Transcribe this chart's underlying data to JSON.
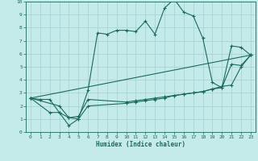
{
  "xlabel": "Humidex (Indice chaleur)",
  "xlim": [
    -0.5,
    23.5
  ],
  "ylim": [
    0,
    10
  ],
  "background_color": "#c5eaea",
  "grid_color": "#a8d5d5",
  "line_color": "#1a6b5a",
  "lines": [
    {
      "x": [
        0,
        1,
        2,
        3,
        4,
        5,
        6,
        7,
        8,
        9,
        10,
        11,
        12,
        13,
        14,
        15,
        16,
        17,
        18,
        19,
        20,
        21,
        22,
        23
      ],
      "y": [
        2.6,
        2.5,
        2.5,
        1.5,
        1.1,
        1.0,
        3.2,
        7.6,
        7.5,
        7.8,
        7.8,
        7.7,
        8.5,
        7.5,
        9.5,
        10.2,
        9.2,
        8.9,
        7.2,
        3.8,
        3.4,
        6.6,
        6.5,
        5.9
      ]
    },
    {
      "x": [
        0,
        2,
        3,
        4,
        5,
        6,
        10,
        11,
        12,
        13,
        14,
        15,
        16,
        17,
        18,
        19,
        20,
        21,
        22,
        23
      ],
      "y": [
        2.6,
        1.5,
        1.5,
        0.5,
        1.0,
        2.0,
        2.2,
        2.3,
        2.4,
        2.5,
        2.6,
        2.8,
        2.9,
        3.0,
        3.1,
        3.3,
        3.4,
        5.2,
        5.1,
        5.9
      ]
    },
    {
      "x": [
        0,
        3,
        4,
        5,
        6,
        10,
        11,
        12,
        13,
        14,
        15,
        16,
        17,
        18,
        19,
        20,
        21,
        22,
        23
      ],
      "y": [
        2.6,
        2.0,
        1.1,
        1.2,
        2.5,
        2.3,
        2.4,
        2.5,
        2.6,
        2.7,
        2.8,
        2.9,
        3.0,
        3.1,
        3.3,
        3.5,
        3.6,
        5.0,
        5.9
      ]
    },
    {
      "x": [
        0,
        23
      ],
      "y": [
        2.6,
        5.9
      ]
    }
  ]
}
